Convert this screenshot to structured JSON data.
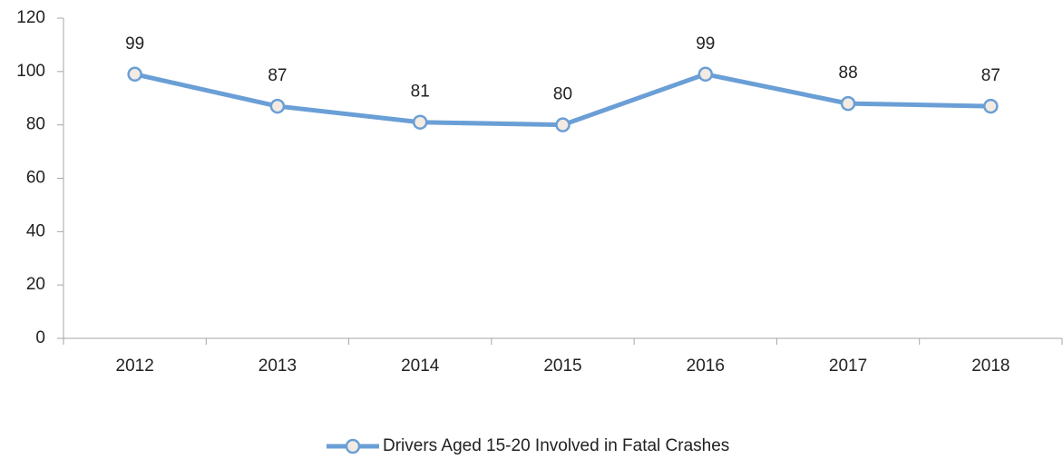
{
  "chart_data": {
    "type": "line",
    "categories": [
      "2012",
      "2013",
      "2014",
      "2015",
      "2016",
      "2017",
      "2018"
    ],
    "series": [
      {
        "name": "Drivers Aged 15-20 Involved in Fatal Crashes",
        "color": "#6a9fd6",
        "values": [
          99,
          87,
          81,
          80,
          99,
          88,
          87
        ]
      }
    ],
    "ylim": [
      0,
      120
    ],
    "yticks": [
      0,
      20,
      40,
      60,
      80,
      100,
      120
    ],
    "grid": false,
    "legend": "bottom"
  }
}
